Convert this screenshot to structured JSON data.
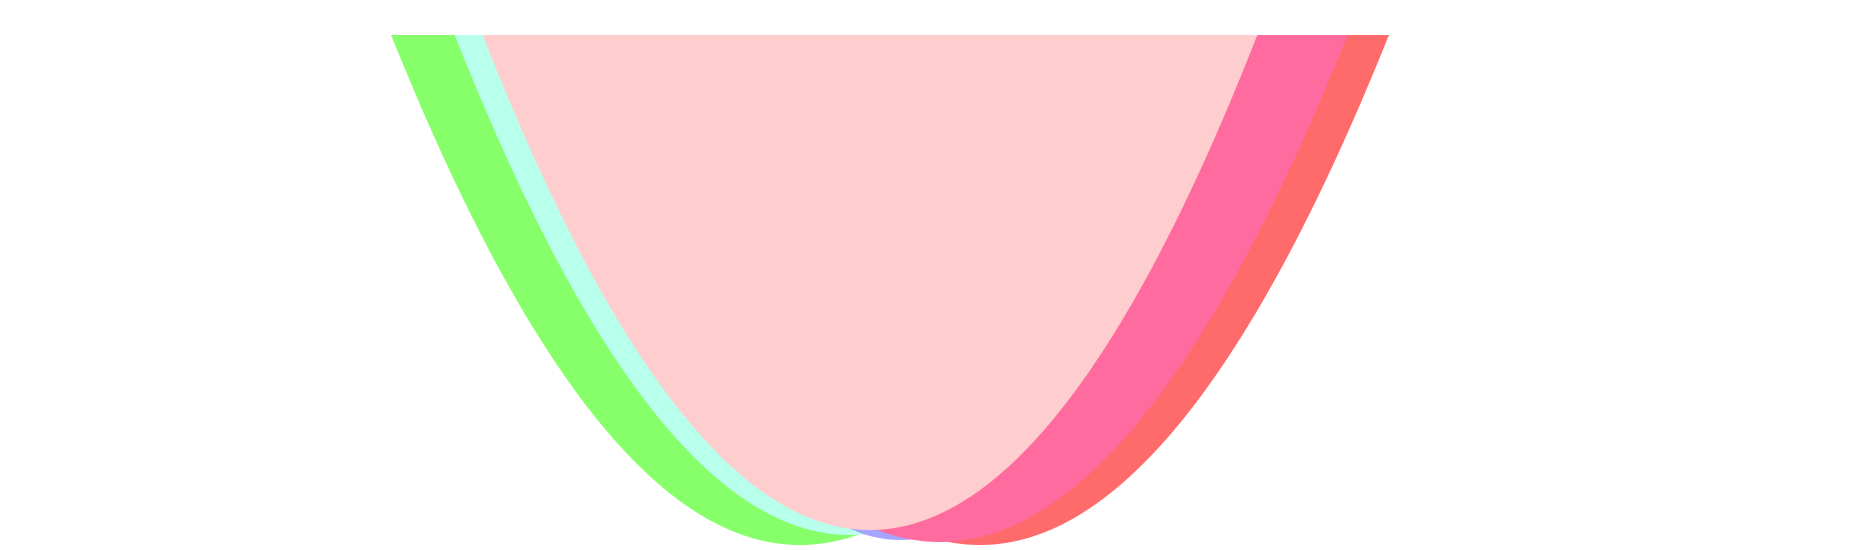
{
  "chart_data": {
    "type": "area",
    "title": "",
    "xlabel": "",
    "ylabel": "",
    "grid": false,
    "legend": "none",
    "series": [
      {
        "color": "#87ff6a",
        "x_bottom": 800,
        "y_bottom": 545,
        "rise": 0.00305
      },
      {
        "color": "#b8ffec",
        "x_bottom": 850,
        "y_bottom": 535,
        "rise": 0.0032
      },
      {
        "color": "#a5a5ff",
        "x_bottom": 900,
        "y_bottom": 540,
        "rise": 0.0045
      },
      {
        "color": "#ff6b6a",
        "x_bottom": 980,
        "y_bottom": 545,
        "rise": 0.00305
      },
      {
        "color": "#ff6b9e",
        "x_bottom": 940,
        "y_bottom": 542,
        "rise": 0.00305
      },
      {
        "color": "#fecdcd",
        "x_bottom": 870,
        "y_bottom": 530,
        "rise": 0.0033
      }
    ]
  }
}
